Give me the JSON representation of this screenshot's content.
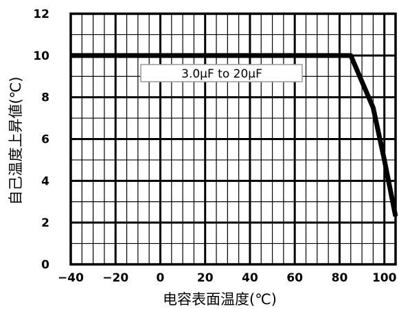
{
  "chart_data": {
    "type": "line",
    "title": "",
    "xlabel": "电容表面温度(℃)",
    "ylabel": "自己温度上昇値(℃)",
    "xlim": [
      -40,
      105
    ],
    "ylim": [
      0,
      12
    ],
    "x_ticks": [
      -40,
      -20,
      0,
      20,
      40,
      60,
      80,
      100
    ],
    "x_tick_labels": [
      "−40",
      "−20",
      "0",
      "20",
      "40",
      "60",
      "80",
      "100"
    ],
    "y_ticks": [
      0,
      2,
      4,
      6,
      8,
      10,
      12
    ],
    "y_tick_labels": [
      "0",
      "2",
      "4",
      "6",
      "8",
      "10",
      "12"
    ],
    "major_grid": true,
    "minor_grid": true,
    "annotation": "3.0μF to 20μF",
    "legend": "none",
    "series": [
      {
        "x": [
          -40,
          85,
          95,
          100,
          105
        ],
        "y": [
          10,
          10,
          7.5,
          5,
          2.3
        ]
      }
    ]
  }
}
